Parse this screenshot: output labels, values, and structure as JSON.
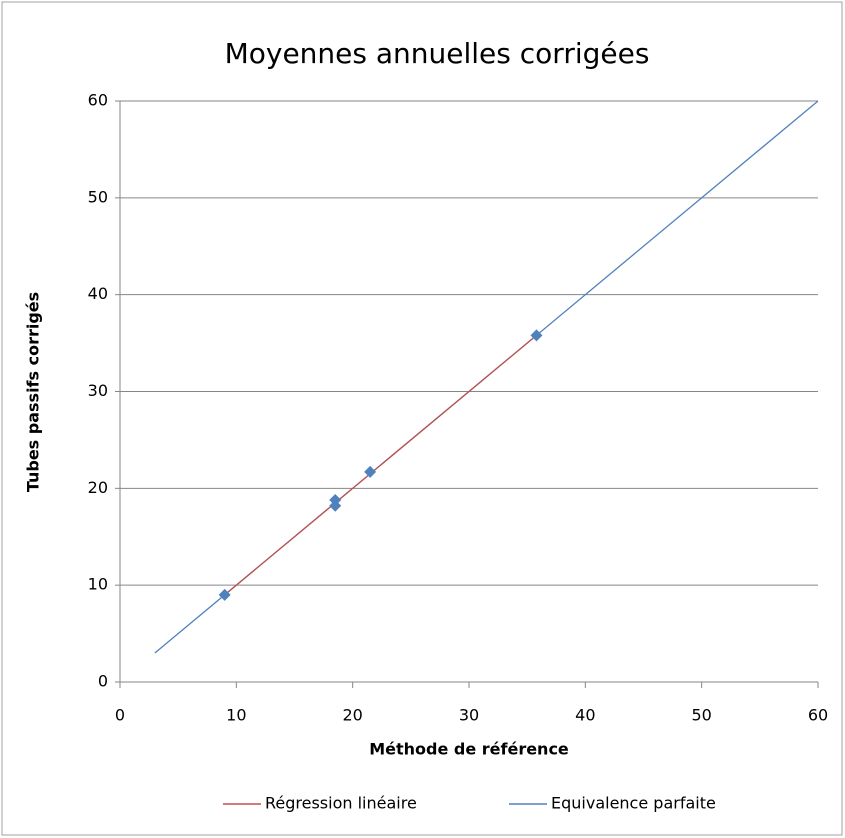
{
  "chart_data": {
    "type": "scatter",
    "title": "Moyennes annuelles corrigées",
    "xlabel": "Méthode de référence",
    "ylabel": "Tubes passifs corrigés",
    "xlim": [
      0,
      60
    ],
    "ylim": [
      0,
      60
    ],
    "xticks": [
      0,
      10,
      20,
      30,
      40,
      50,
      60
    ],
    "yticks": [
      0,
      10,
      20,
      30,
      40,
      50,
      60
    ],
    "grid": true,
    "legend": "bottom",
    "series": [
      {
        "color": "#4f81bd",
        "marker": "diamond",
        "x": [
          9,
          18.5,
          18.5,
          21.5,
          35.8
        ],
        "values": [
          9,
          18.8,
          18.2,
          21.7,
          35.8
        ]
      },
      {
        "name": "Régression linéaire",
        "color": "#c0504d",
        "x": [
          9,
          35.8
        ],
        "values": [
          9,
          35.8
        ]
      },
      {
        "name": "Equivalence parfaite",
        "color": "#4f81bd",
        "x": [
          3,
          60
        ],
        "values": [
          3,
          60
        ]
      }
    ]
  }
}
